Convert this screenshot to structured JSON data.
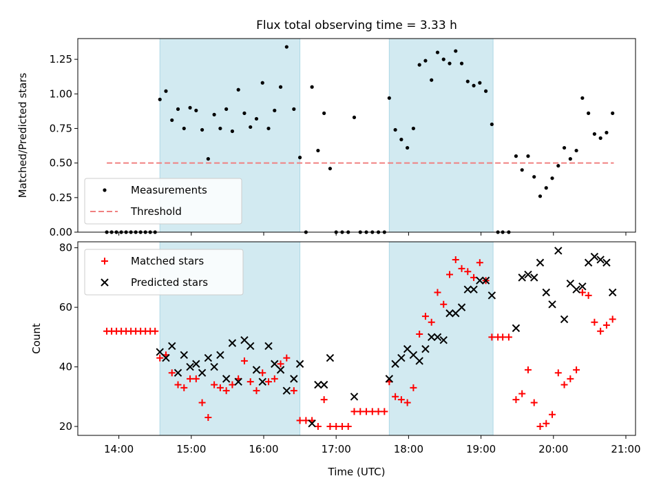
{
  "title": "Flux total observing time = 3.33 h",
  "colors": {
    "shade": "#add8e6",
    "measurement": "#000000",
    "threshold": "#f08080",
    "matched": "#ff0000",
    "predicted": "#000000"
  },
  "chart_data": [
    {
      "type": "scatter",
      "ylabel": "Matched/Predicted stars",
      "ylim": [
        0,
        1.4
      ],
      "yticks": [
        0.0,
        0.25,
        0.5,
        0.75,
        1.0,
        1.25
      ],
      "ytick_labels": [
        "0.00",
        "0.25",
        "0.50",
        "0.75",
        "1.00",
        "1.25"
      ],
      "xlim": [
        "13:26",
        "21:08"
      ],
      "legend_position": "lower-left",
      "shaded_intervals": [
        [
          "14:34",
          "16:30"
        ],
        [
          "17:44",
          "19:10"
        ]
      ],
      "threshold": {
        "name": "Threshold",
        "value": 0.5,
        "x_range": [
          "13:50",
          "20:50"
        ]
      },
      "series": [
        {
          "name": "Measurements",
          "points": [
            [
              "13:50",
              0
            ],
            [
              "13:54",
              0
            ],
            [
              "13:58",
              0
            ],
            [
              "14:02",
              0
            ],
            [
              "14:06",
              0
            ],
            [
              "14:10",
              0
            ],
            [
              "14:14",
              0
            ],
            [
              "14:18",
              0
            ],
            [
              "14:22",
              0
            ],
            [
              "14:26",
              0
            ],
            [
              "14:30",
              0
            ],
            [
              "14:34",
              0.96
            ],
            [
              "14:39",
              1.02
            ],
            [
              "14:44",
              0.81
            ],
            [
              "14:49",
              0.89
            ],
            [
              "14:54",
              0.75
            ],
            [
              "14:59",
              0.9
            ],
            [
              "15:04",
              0.88
            ],
            [
              "15:09",
              0.74
            ],
            [
              "15:14",
              0.53
            ],
            [
              "15:19",
              0.85
            ],
            [
              "15:24",
              0.75
            ],
            [
              "15:29",
              0.89
            ],
            [
              "15:34",
              0.73
            ],
            [
              "15:39",
              1.03
            ],
            [
              "15:44",
              0.86
            ],
            [
              "15:49",
              0.76
            ],
            [
              "15:54",
              0.82
            ],
            [
              "15:59",
              1.08
            ],
            [
              "16:04",
              0.75
            ],
            [
              "16:09",
              0.88
            ],
            [
              "16:14",
              1.05
            ],
            [
              "16:19",
              1.34
            ],
            [
              "16:25",
              0.89
            ],
            [
              "16:30",
              0.54
            ],
            [
              "16:35",
              0
            ],
            [
              "16:40",
              1.05
            ],
            [
              "16:45",
              0.59
            ],
            [
              "16:50",
              0.86
            ],
            [
              "16:55",
              0.46
            ],
            [
              "17:00",
              0
            ],
            [
              "17:05",
              0
            ],
            [
              "17:10",
              0
            ],
            [
              "17:15",
              0.83
            ],
            [
              "17:20",
              0
            ],
            [
              "17:25",
              0
            ],
            [
              "17:30",
              0
            ],
            [
              "17:35",
              0
            ],
            [
              "17:40",
              0
            ],
            [
              "17:44",
              0.97
            ],
            [
              "17:49",
              0.74
            ],
            [
              "17:54",
              0.67
            ],
            [
              "17:59",
              0.61
            ],
            [
              "18:04",
              0.75
            ],
            [
              "18:09",
              1.21
            ],
            [
              "18:14",
              1.24
            ],
            [
              "18:19",
              1.1
            ],
            [
              "18:24",
              1.3
            ],
            [
              "18:29",
              1.25
            ],
            [
              "18:34",
              1.22
            ],
            [
              "18:39",
              1.31
            ],
            [
              "18:44",
              1.22
            ],
            [
              "18:49",
              1.09
            ],
            [
              "18:54",
              1.06
            ],
            [
              "18:59",
              1.08
            ],
            [
              "19:04",
              1.02
            ],
            [
              "19:09",
              0.78
            ],
            [
              "19:14",
              0
            ],
            [
              "19:18",
              0
            ],
            [
              "19:23",
              0
            ],
            [
              "19:29",
              0.55
            ],
            [
              "19:34",
              0.45
            ],
            [
              "19:39",
              0.55
            ],
            [
              "19:44",
              0.4
            ],
            [
              "19:49",
              0.26
            ],
            [
              "19:54",
              0.32
            ],
            [
              "19:59",
              0.39
            ],
            [
              "20:04",
              0.48
            ],
            [
              "20:09",
              0.61
            ],
            [
              "20:14",
              0.53
            ],
            [
              "20:19",
              0.59
            ],
            [
              "20:24",
              0.97
            ],
            [
              "20:29",
              0.86
            ],
            [
              "20:34",
              0.71
            ],
            [
              "20:39",
              0.68
            ],
            [
              "20:44",
              0.72
            ],
            [
              "20:49",
              0.86
            ]
          ]
        }
      ]
    },
    {
      "type": "scatter",
      "ylabel": "Count",
      "xlabel": "Time (UTC)",
      "ylim": [
        17,
        82
      ],
      "yticks": [
        20,
        40,
        60,
        80
      ],
      "ytick_labels": [
        "20",
        "40",
        "60",
        "80"
      ],
      "xlim": [
        "13:26",
        "21:08"
      ],
      "xticks": [
        "14:00",
        "15:00",
        "16:00",
        "17:00",
        "18:00",
        "19:00",
        "20:00",
        "21:00"
      ],
      "legend_position": "upper-left",
      "shaded_intervals": [
        [
          "14:34",
          "16:30"
        ],
        [
          "17:44",
          "19:10"
        ]
      ],
      "series": [
        {
          "name": "Matched stars",
          "marker": "plus",
          "points": [
            [
              "13:50",
              52
            ],
            [
              "13:54",
              52
            ],
            [
              "13:58",
              52
            ],
            [
              "14:02",
              52
            ],
            [
              "14:06",
              52
            ],
            [
              "14:10",
              52
            ],
            [
              "14:14",
              52
            ],
            [
              "14:18",
              52
            ],
            [
              "14:22",
              52
            ],
            [
              "14:26",
              52
            ],
            [
              "14:30",
              52
            ],
            [
              "14:34",
              43
            ],
            [
              "14:39",
              44
            ],
            [
              "14:44",
              38
            ],
            [
              "14:49",
              34
            ],
            [
              "14:54",
              33
            ],
            [
              "14:59",
              36
            ],
            [
              "15:04",
              36
            ],
            [
              "15:09",
              28
            ],
            [
              "15:14",
              23
            ],
            [
              "15:19",
              34
            ],
            [
              "15:24",
              33
            ],
            [
              "15:29",
              32
            ],
            [
              "15:34",
              34
            ],
            [
              "15:39",
              36
            ],
            [
              "15:44",
              42
            ],
            [
              "15:49",
              35
            ],
            [
              "15:54",
              32
            ],
            [
              "15:59",
              38
            ],
            [
              "16:04",
              35
            ],
            [
              "16:09",
              36
            ],
            [
              "16:14",
              41
            ],
            [
              "16:19",
              43
            ],
            [
              "16:25",
              32
            ],
            [
              "16:30",
              22
            ],
            [
              "16:35",
              22
            ],
            [
              "16:40",
              22
            ],
            [
              "16:45",
              20
            ],
            [
              "16:50",
              29
            ],
            [
              "16:55",
              20
            ],
            [
              "17:00",
              20
            ],
            [
              "17:05",
              20
            ],
            [
              "17:10",
              20
            ],
            [
              "17:15",
              25
            ],
            [
              "17:20",
              25
            ],
            [
              "17:25",
              25
            ],
            [
              "17:30",
              25
            ],
            [
              "17:35",
              25
            ],
            [
              "17:40",
              25
            ],
            [
              "17:44",
              35
            ],
            [
              "17:49",
              30
            ],
            [
              "17:54",
              29
            ],
            [
              "17:59",
              28
            ],
            [
              "18:04",
              33
            ],
            [
              "18:09",
              51
            ],
            [
              "18:14",
              57
            ],
            [
              "18:19",
              55
            ],
            [
              "18:24",
              65
            ],
            [
              "18:29",
              61
            ],
            [
              "18:34",
              71
            ],
            [
              "18:39",
              76
            ],
            [
              "18:44",
              73
            ],
            [
              "18:49",
              72
            ],
            [
              "18:54",
              70
            ],
            [
              "18:59",
              75
            ],
            [
              "19:04",
              69
            ],
            [
              "19:09",
              50
            ],
            [
              "19:14",
              50
            ],
            [
              "19:18",
              50
            ],
            [
              "19:23",
              50
            ],
            [
              "19:29",
              29
            ],
            [
              "19:34",
              31
            ],
            [
              "19:39",
              39
            ],
            [
              "19:44",
              28
            ],
            [
              "19:49",
              20
            ],
            [
              "19:54",
              21
            ],
            [
              "19:59",
              24
            ],
            [
              "20:04",
              38
            ],
            [
              "20:09",
              34
            ],
            [
              "20:14",
              36
            ],
            [
              "20:19",
              39
            ],
            [
              "20:24",
              65
            ],
            [
              "20:29",
              64
            ],
            [
              "20:34",
              55
            ],
            [
              "20:39",
              52
            ],
            [
              "20:44",
              54
            ],
            [
              "20:49",
              56
            ]
          ]
        },
        {
          "name": "Predicted stars",
          "marker": "x",
          "points": [
            [
              "14:34",
              45
            ],
            [
              "14:39",
              43
            ],
            [
              "14:44",
              47
            ],
            [
              "14:49",
              38
            ],
            [
              "14:54",
              44
            ],
            [
              "14:59",
              40
            ],
            [
              "15:04",
              41
            ],
            [
              "15:09",
              38
            ],
            [
              "15:14",
              43
            ],
            [
              "15:19",
              40
            ],
            [
              "15:24",
              44
            ],
            [
              "15:29",
              36
            ],
            [
              "15:34",
              48
            ],
            [
              "15:39",
              35
            ],
            [
              "15:44",
              49
            ],
            [
              "15:49",
              47
            ],
            [
              "15:54",
              39
            ],
            [
              "15:59",
              35
            ],
            [
              "16:04",
              47
            ],
            [
              "16:09",
              41
            ],
            [
              "16:14",
              39
            ],
            [
              "16:19",
              32
            ],
            [
              "16:25",
              36
            ],
            [
              "16:30",
              41
            ],
            [
              "16:40",
              21
            ],
            [
              "16:45",
              34
            ],
            [
              "16:50",
              34
            ],
            [
              "16:55",
              43
            ],
            [
              "17:15",
              30
            ],
            [
              "17:44",
              36
            ],
            [
              "17:49",
              41
            ],
            [
              "17:54",
              43
            ],
            [
              "17:59",
              46
            ],
            [
              "18:04",
              44
            ],
            [
              "18:09",
              42
            ],
            [
              "18:14",
              46
            ],
            [
              "18:19",
              50
            ],
            [
              "18:24",
              50
            ],
            [
              "18:29",
              49
            ],
            [
              "18:34",
              58
            ],
            [
              "18:39",
              58
            ],
            [
              "18:44",
              60
            ],
            [
              "18:49",
              66
            ],
            [
              "18:54",
              66
            ],
            [
              "18:59",
              69
            ],
            [
              "19:04",
              69
            ],
            [
              "19:09",
              64
            ],
            [
              "19:29",
              53
            ],
            [
              "19:34",
              70
            ],
            [
              "19:39",
              71
            ],
            [
              "19:44",
              70
            ],
            [
              "19:49",
              75
            ],
            [
              "19:54",
              65
            ],
            [
              "19:59",
              61
            ],
            [
              "20:04",
              79
            ],
            [
              "20:09",
              56
            ],
            [
              "20:14",
              68
            ],
            [
              "20:19",
              66
            ],
            [
              "20:24",
              67
            ],
            [
              "20:29",
              75
            ],
            [
              "20:34",
              77
            ],
            [
              "20:39",
              76
            ],
            [
              "20:44",
              75
            ],
            [
              "20:49",
              65
            ]
          ]
        }
      ]
    }
  ]
}
